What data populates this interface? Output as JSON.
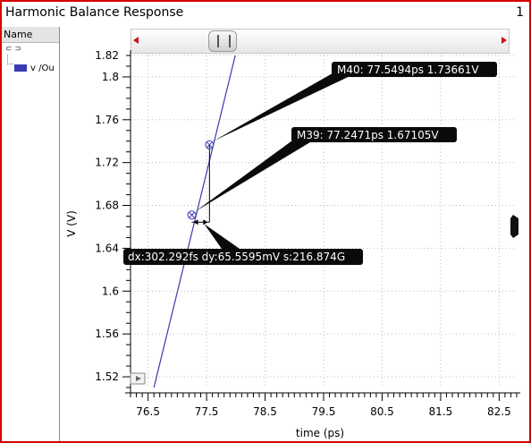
{
  "window": {
    "title": "Harmonic Balance Response",
    "number": "1"
  },
  "legend": {
    "header": "Name",
    "expander": "⊂ ⊃",
    "items": [
      {
        "label": "v /Ou",
        "color": "#3a3ab0"
      }
    ]
  },
  "chart_data": {
    "type": "line",
    "xlabel": "time (ps)",
    "ylabel": "V (V)",
    "xlim": [
      76.2,
      82.8
    ],
    "ylim": [
      1.51,
      1.82
    ],
    "x_ticks": [
      "76.5",
      "77.5",
      "78.5",
      "79.5",
      "80.5",
      "81.5",
      "82.5"
    ],
    "y_ticks": [
      "1.52",
      "1.56",
      "1.6",
      "1.64",
      "1.68",
      "1.72",
      "1.76",
      "1.8",
      "1.82"
    ],
    "series": [
      {
        "name": "v /Ou",
        "color": "#3a3ab0",
        "x": [
          76.6,
          77.99
        ],
        "y": [
          1.51,
          1.82
        ]
      }
    ],
    "markers": [
      {
        "id": "M40",
        "x": 77.5494,
        "y": 1.73661,
        "label": "M40: 77.5494ps 1.73661V"
      },
      {
        "id": "M39",
        "x": 77.2471,
        "y": 1.67105,
        "label": "M39: 77.2471ps 1.67105V"
      }
    ],
    "delta": {
      "label": "dx:302.292fs dy:65.5595mV s:216.874G"
    },
    "grid": true
  }
}
